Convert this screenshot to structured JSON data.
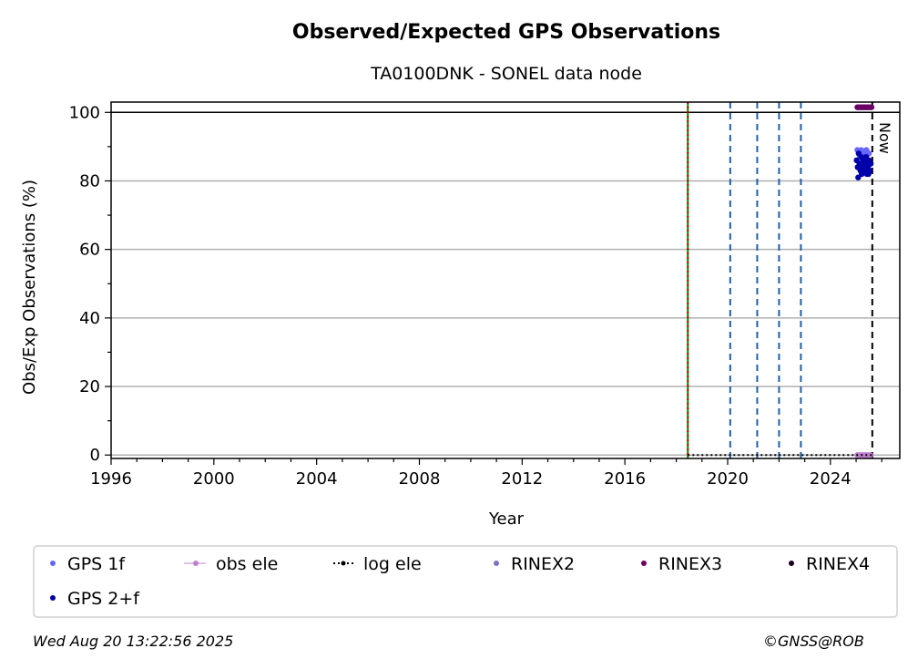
{
  "chart_data": {
    "type": "scatter",
    "title": "Observed/Expected GPS Observations",
    "subtitle": "TA0100DNK - SONEL data node",
    "xlabel": "Year",
    "ylabel": "Obs/Exp Observations (%)",
    "xlim": [
      1996,
      2026.7
    ],
    "ylim": [
      -1,
      103
    ],
    "xticks": [
      1996,
      2000,
      2004,
      2008,
      2012,
      2016,
      2020,
      2024
    ],
    "yticks": [
      0,
      20,
      40,
      60,
      80,
      100
    ],
    "grid": "horizontal",
    "now_label": "Now",
    "now_date": 2025.63,
    "reference_line_y": 100,
    "vlines": [
      {
        "x": 2018.45,
        "color": "#008000",
        "style": "solid"
      },
      {
        "x": 2018.45,
        "color": "#cc0000",
        "style": "dotted"
      },
      {
        "x": 2020.1,
        "color": "#1f5fa8",
        "style": "dashed"
      },
      {
        "x": 2021.15,
        "color": "#1f5fa8",
        "style": "dashed"
      },
      {
        "x": 2022.0,
        "color": "#1f5fa8",
        "style": "dashed"
      },
      {
        "x": 2022.85,
        "color": "#1f5fa8",
        "style": "dashed"
      }
    ],
    "series": [
      {
        "name": "GPS 1f",
        "color": "#6666ff",
        "marker": "dot",
        "x": [
          2025.05,
          2025.1,
          2025.15,
          2025.2,
          2025.25,
          2025.3,
          2025.35,
          2025.4,
          2025.45,
          2025.5
        ],
        "y": [
          89,
          88,
          87,
          89,
          86,
          88,
          87,
          89,
          86,
          88
        ]
      },
      {
        "name": "obs ele",
        "color": "#c080d0",
        "marker": "dot-line",
        "x": [
          2025.05,
          2025.15,
          2025.25,
          2025.35,
          2025.45,
          2025.55
        ],
        "y": [
          0,
          0,
          0,
          0,
          0,
          0
        ]
      },
      {
        "name": "log ele",
        "color": "#000000",
        "marker": "dotted-line",
        "x": [
          2018.45,
          2025.63
        ],
        "y": [
          0,
          0
        ]
      },
      {
        "name": "RINEX2",
        "color": "#8070c0",
        "marker": "dot",
        "x": [],
        "y": []
      },
      {
        "name": "RINEX3",
        "color": "#6a0066",
        "marker": "dot",
        "x": [
          2025.05,
          2025.1,
          2025.15,
          2025.2,
          2025.25,
          2025.3,
          2025.35,
          2025.4,
          2025.45,
          2025.5,
          2025.55,
          2025.6
        ],
        "y": [
          101.5,
          101.5,
          101.5,
          101.5,
          101.5,
          101.5,
          101.5,
          101.5,
          101.5,
          101.5,
          101.5,
          101.5
        ]
      },
      {
        "name": "RINEX4",
        "color": "#1a0020",
        "marker": "dot",
        "x": [],
        "y": []
      },
      {
        "name": "GPS 2+f",
        "color": "#0000aa",
        "marker": "dot",
        "x": [
          2025.02,
          2025.06,
          2025.1,
          2025.13,
          2025.17,
          2025.2,
          2025.24,
          2025.28,
          2025.32,
          2025.35,
          2025.39,
          2025.42,
          2025.46,
          2025.5,
          2025.53,
          2025.57,
          2025.08,
          2025.22,
          2025.36,
          2025.48
        ],
        "y": [
          86,
          84,
          88,
          85,
          83,
          87,
          84,
          86,
          83,
          85,
          87,
          82,
          84,
          86,
          83,
          85,
          81,
          82,
          84,
          82
        ]
      }
    ]
  },
  "footer": {
    "timestamp": "Wed Aug 20 13:22:56 2025",
    "credit": "©GNSS@ROB"
  }
}
